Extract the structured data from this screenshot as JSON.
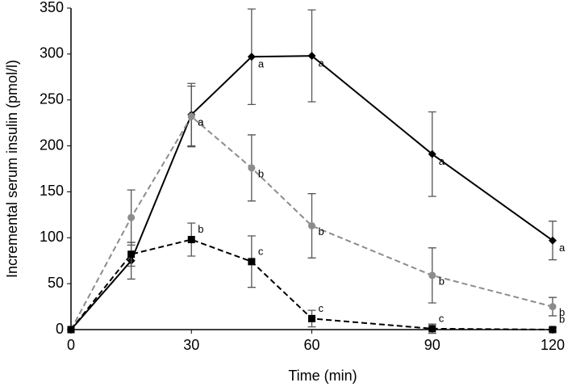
{
  "chart_data": {
    "type": "line",
    "x_label": "Time (min)",
    "y_label": "Incremental serum insulin (pmol/l)",
    "x": [
      0,
      15,
      30,
      45,
      60,
      90,
      120
    ],
    "xlim": [
      0,
      120
    ],
    "xticks": [
      0,
      30,
      60,
      90,
      120
    ],
    "ylim": [
      0,
      350
    ],
    "yticks": [
      0,
      50,
      100,
      150,
      200,
      250,
      300,
      350
    ],
    "grid": false,
    "series": [
      {
        "color": "#000000",
        "dash": "solid",
        "marker": "diamond",
        "values": [
          0,
          75,
          234,
          297,
          298,
          191,
          97
        ],
        "errors": [
          0,
          20,
          34,
          52,
          50,
          46,
          21
        ],
        "labels": [
          null,
          null,
          "a",
          "a",
          "a",
          "a",
          "a"
        ]
      },
      {
        "color": "#8c8c8c",
        "dash": "dashed",
        "marker": "circle",
        "values": [
          0,
          122,
          232,
          176,
          113,
          59,
          25
        ],
        "errors": [
          0,
          30,
          33,
          36,
          35,
          30,
          10
        ],
        "labels": [
          null,
          null,
          "a",
          "b",
          "b",
          "b",
          "b"
        ]
      },
      {
        "color": "#000000",
        "dash": "dashed",
        "marker": "square",
        "values": [
          0,
          82,
          98,
          74,
          12,
          1,
          0
        ],
        "errors": [
          0,
          13,
          18,
          28,
          9,
          5,
          2
        ],
        "labels": [
          null,
          null,
          "b",
          "c",
          "c",
          "c",
          "b"
        ]
      }
    ]
  }
}
